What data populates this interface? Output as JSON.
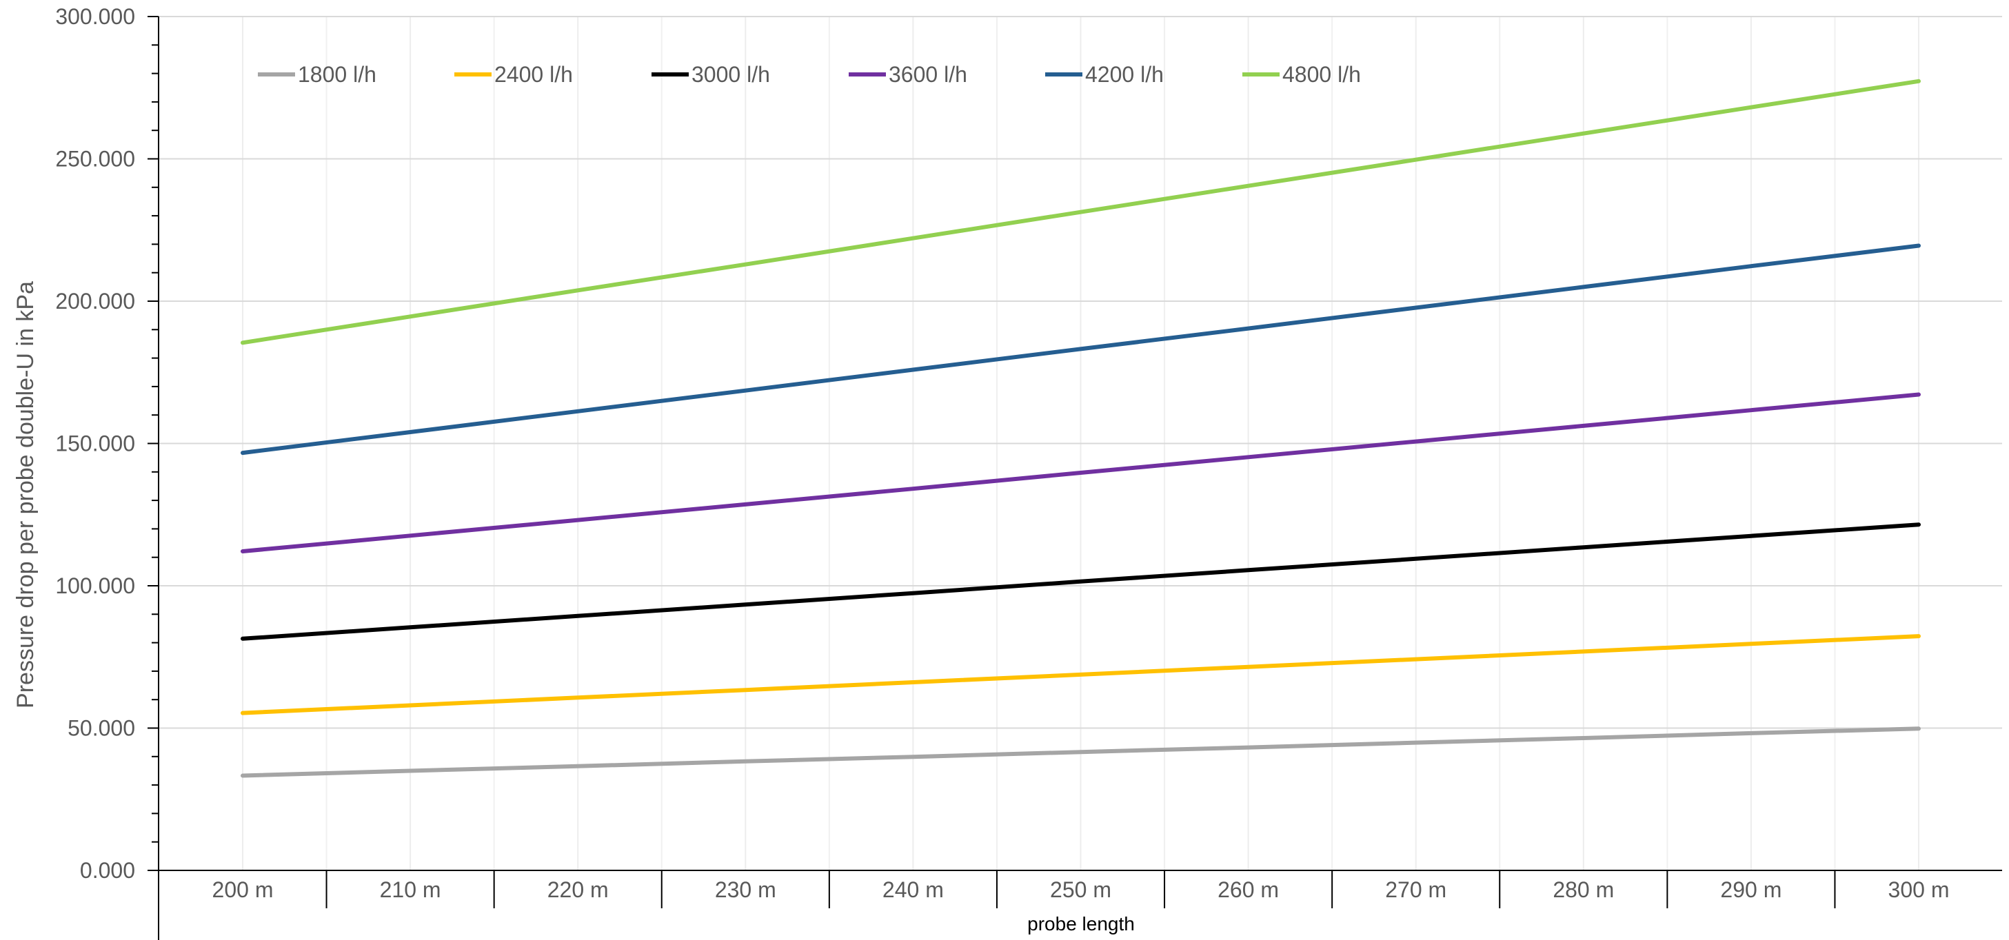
{
  "chart_data": {
    "type": "line",
    "title": "",
    "xlabel": "probe length",
    "ylabel": "Pressure drop per probe double-U in kPa",
    "categories": [
      "200 m",
      "210 m",
      "220 m",
      "230 m",
      "240 m",
      "250 m",
      "260 m",
      "270 m",
      "280 m",
      "290 m",
      "300 m"
    ],
    "ylim": [
      0,
      300
    ],
    "ytick_labels": [
      "0.000",
      "50.000",
      "100.000",
      "150.000",
      "200.000",
      "250.000",
      "300.000"
    ],
    "grid": true,
    "legend_position": "top",
    "series": [
      {
        "name": "1800 l/h",
        "color": "#A5A5A5",
        "values": [
          33.3,
          35.0,
          36.6,
          38.3,
          39.9,
          41.6,
          43.2,
          44.9,
          46.5,
          48.2,
          49.8
        ]
      },
      {
        "name": "2400 l/h",
        "color": "#FFC000",
        "values": [
          55.3,
          58.0,
          60.7,
          63.4,
          66.1,
          68.8,
          71.5,
          74.2,
          76.9,
          79.6,
          82.3
        ]
      },
      {
        "name": "3000 l/h",
        "color": "#000000",
        "values": [
          81.4,
          85.4,
          89.4,
          93.4,
          97.4,
          101.5,
          105.5,
          109.5,
          113.5,
          117.5,
          121.5
        ]
      },
      {
        "name": "3600 l/h",
        "color": "#7030A0",
        "values": [
          112.1,
          117.6,
          123.1,
          128.6,
          134.1,
          139.7,
          145.2,
          150.7,
          156.2,
          161.7,
          167.2
        ]
      },
      {
        "name": "4200 l/h",
        "color": "#255E91",
        "values": [
          146.7,
          154.0,
          161.3,
          168.6,
          175.9,
          183.2,
          190.4,
          197.7,
          205.0,
          212.3,
          219.5
        ]
      },
      {
        "name": "4800 l/h",
        "color": "#92D050",
        "values": [
          185.4,
          194.6,
          203.8,
          212.9,
          222.1,
          231.3,
          240.5,
          249.7,
          258.9,
          268.1,
          277.3
        ]
      }
    ]
  }
}
